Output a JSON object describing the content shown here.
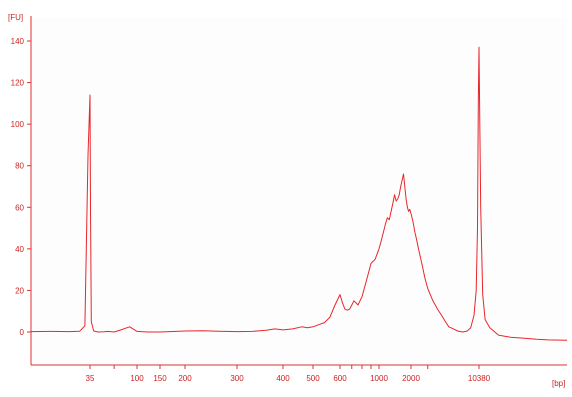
{
  "chart_data": {
    "type": "line",
    "title": "",
    "ylabel": "[FU]",
    "xlabel": "[bp]",
    "ylim": [
      -15,
      148
    ],
    "grid": false,
    "legend": "none",
    "y_ticks": [
      "0",
      "20",
      "40",
      "60",
      "80",
      "100",
      "120",
      "140"
    ],
    "y_tick_values": [
      0,
      20,
      40,
      60,
      80,
      100,
      120,
      140
    ],
    "x_ticks": [
      "35",
      "100",
      "150",
      "200",
      "300",
      "400",
      "500",
      "600",
      "1000",
      "2000",
      "10380"
    ],
    "series": [
      {
        "color": "#e8262b",
        "x": [
          25,
          28,
          31,
          33,
          34,
          34.6,
          35,
          35.4,
          36,
          38,
          42,
          48,
          52,
          55,
          60,
          70,
          85,
          100,
          120,
          150,
          180,
          200,
          230,
          260,
          300,
          330,
          360,
          380,
          400,
          430,
          460,
          480,
          500,
          520,
          540,
          560,
          580,
          600,
          620,
          640,
          660,
          680,
          700,
          720,
          740,
          760,
          800,
          850,
          900,
          950,
          1000,
          1050,
          1100,
          1150,
          1200,
          1250,
          1300,
          1350,
          1400,
          1450,
          1500,
          1550,
          1600,
          1650,
          1700,
          1750,
          1800,
          1850,
          1900,
          1950,
          2000,
          2100,
          2200,
          2300,
          2400,
          2600,
          2800,
          3000,
          3400,
          3800,
          4200,
          4600,
          5000,
          5600,
          6200,
          7000,
          7800,
          8500,
          9200,
          9700,
          10000,
          10200,
          10380,
          10550,
          10750,
          11000,
          11500,
          12500,
          14000,
          16000,
          18000,
          20000,
          24000
        ],
        "values": [
          0.2,
          0.3,
          0.2,
          0.4,
          3,
          85,
          114,
          60,
          5,
          0.5,
          0,
          0.1,
          0.3,
          0.2,
          0,
          1,
          2.5,
          0.3,
          0,
          0,
          0.3,
          0.5,
          0.6,
          0.4,
          0.2,
          0.3,
          0.8,
          1.5,
          1,
          1.5,
          2.5,
          2,
          2.5,
          3.5,
          4.5,
          7,
          13,
          18,
          14,
          11,
          10.5,
          11,
          13,
          15,
          14,
          13,
          17,
          25,
          33,
          35,
          40,
          44,
          48,
          52,
          55,
          54,
          58,
          62,
          66,
          63,
          64,
          66,
          70,
          73,
          76,
          70,
          64,
          60,
          58,
          59,
          57,
          53,
          48,
          44,
          40,
          33,
          26,
          21,
          15,
          11,
          8,
          5,
          2.5,
          1.5,
          0.5,
          0,
          0.5,
          2,
          8,
          20,
          50,
          110,
          137,
          60,
          18,
          6,
          2,
          -1.5,
          -2.5,
          -3,
          -3.5,
          -3.8,
          -4
        ]
      }
    ]
  }
}
